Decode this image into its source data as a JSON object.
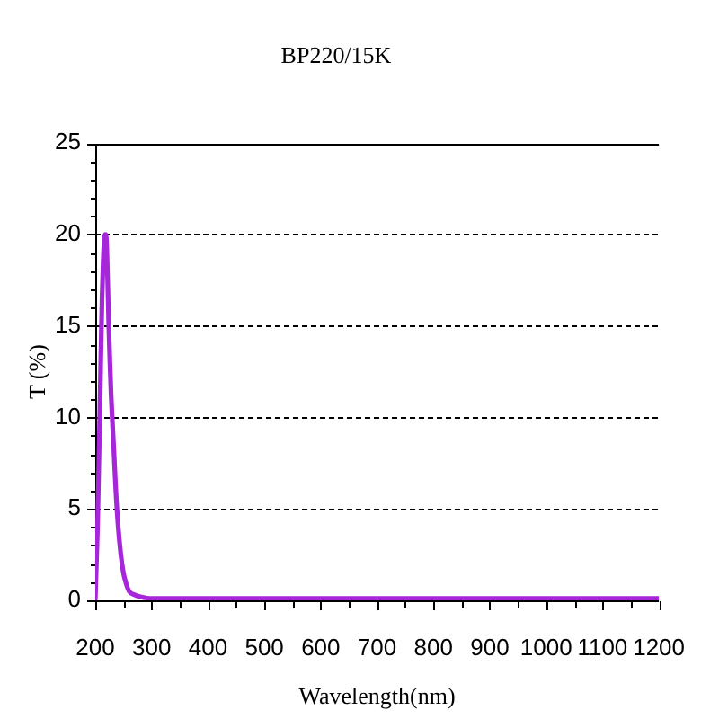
{
  "chart_data": {
    "type": "line",
    "title": "BP220/15K",
    "xlabel": "Wavelength(nm)",
    "ylabel": "T (%)",
    "x": [
      200,
      202,
      204,
      206,
      208,
      210,
      212,
      214,
      216,
      218,
      220,
      222,
      224,
      226,
      228,
      230,
      233,
      236,
      240,
      245,
      250,
      255,
      260,
      270,
      280,
      300,
      400,
      600,
      800,
      1000,
      1200
    ],
    "series": [
      {
        "color": "#a626d9",
        "values": [
          0,
          2,
          4,
          7,
          10,
          13.5,
          16.5,
          18.5,
          19.7,
          20,
          19.6,
          17.5,
          15,
          13,
          11.3,
          10,
          8.2,
          6.3,
          4.3,
          2.6,
          1.5,
          0.9,
          0.5,
          0.3,
          0.2,
          0.1,
          0.1,
          0.1,
          0.1,
          0.1,
          0.1
        ]
      }
    ],
    "xlim": [
      200,
      1200
    ],
    "xticks": [
      200,
      {
        "value": 250,
        "label": null
      },
      300,
      {
        "value": 350,
        "label": null
      },
      400,
      {
        "value": 450,
        "label": null
      },
      500,
      {
        "value": 550,
        "label": null
      },
      600,
      {
        "value": 650,
        "label": null
      },
      700,
      {
        "value": 750,
        "label": null
      },
      800,
      {
        "value": 850,
        "label": null
      },
      900,
      {
        "value": 950,
        "label": null
      },
      1000,
      {
        "value": 1050,
        "label": null
      },
      1100,
      {
        "value": 1150,
        "label": null
      },
      1200
    ],
    "ylim": [
      0,
      25
    ],
    "yticks": [
      0,
      {
        "value": 1,
        "label": null
      },
      {
        "value": 2,
        "label": null
      },
      {
        "value": 3,
        "label": null
      },
      {
        "value": 4,
        "label": null
      },
      5,
      {
        "value": 6,
        "label": null
      },
      {
        "value": 7,
        "label": null
      },
      {
        "value": 8,
        "label": null
      },
      {
        "value": 9,
        "label": null
      },
      10,
      {
        "value": 11,
        "label": null
      },
      {
        "value": 12,
        "label": null
      },
      {
        "value": 13,
        "label": null
      },
      {
        "value": 14,
        "label": null
      },
      15,
      {
        "value": 16,
        "label": null
      },
      {
        "value": 17,
        "label": null
      },
      {
        "value": 18,
        "label": null
      },
      {
        "value": 19,
        "label": null
      },
      20,
      {
        "value": 21,
        "label": null
      },
      {
        "value": 22,
        "label": null
      },
      {
        "value": 23,
        "label": null
      },
      {
        "value": 24,
        "label": null
      },
      25
    ],
    "grid": "y",
    "marker": "none",
    "line_style": "solid"
  }
}
